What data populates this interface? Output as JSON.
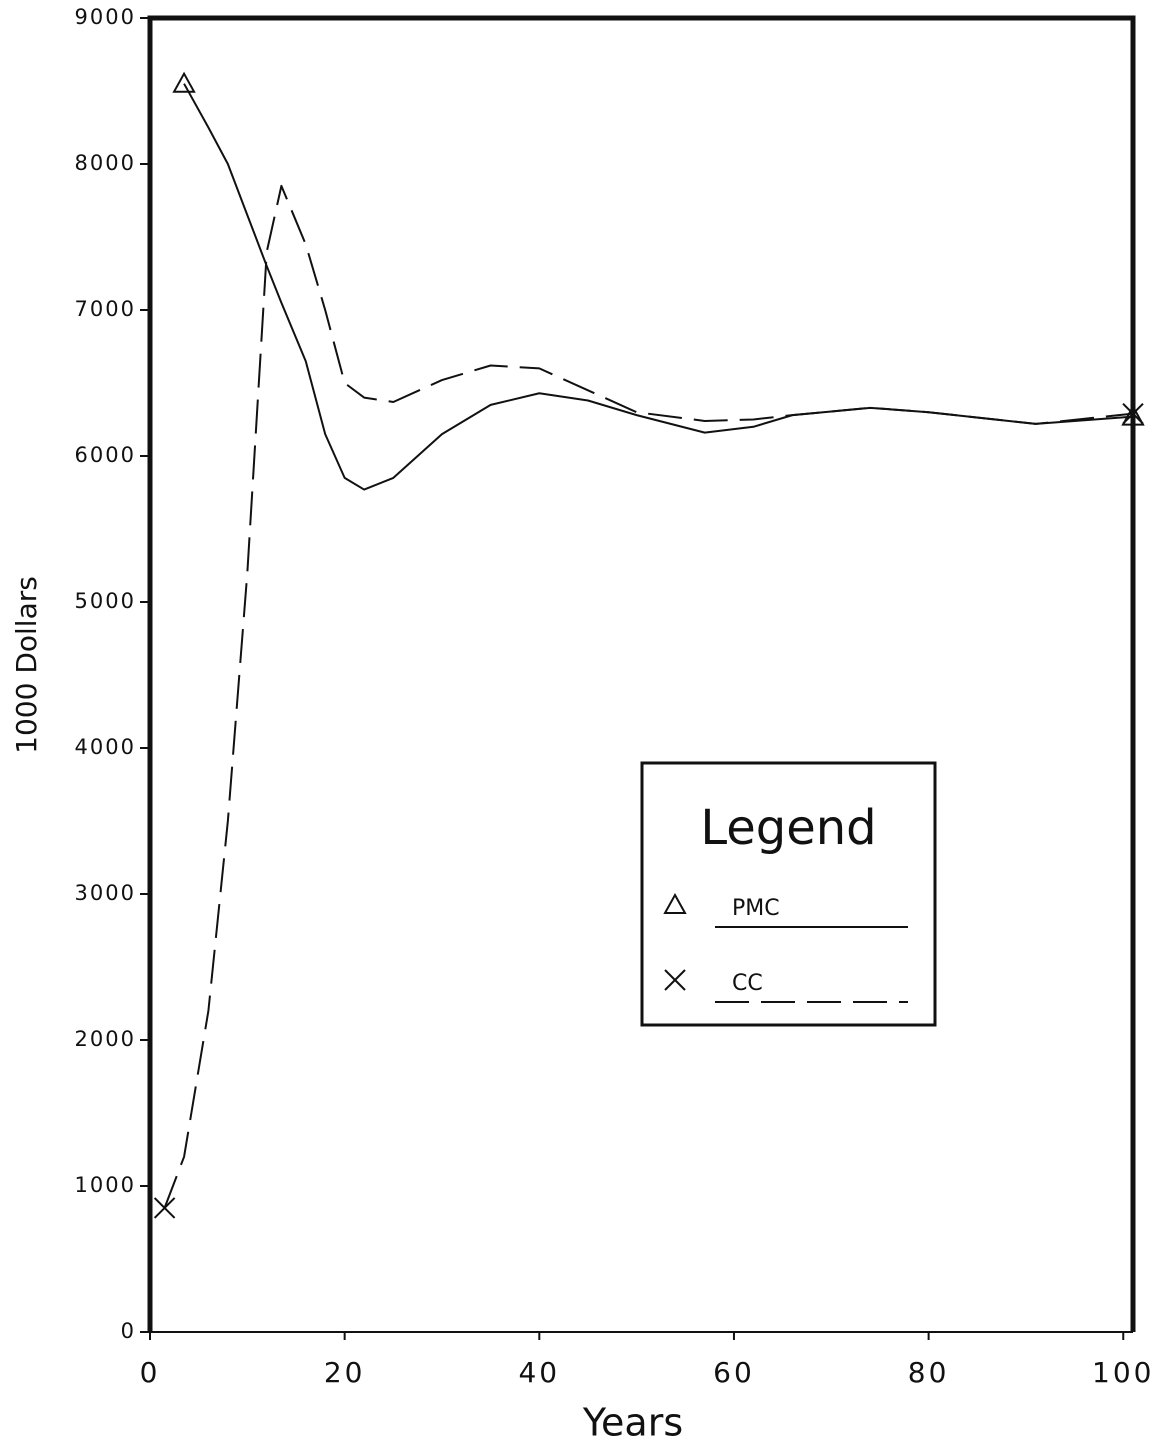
{
  "chart_data": {
    "type": "line",
    "xlabel": "Years",
    "ylabel": "1000 Dollars",
    "legend_title": "Legend",
    "x": [
      1.5,
      3.5,
      6,
      8,
      10,
      12,
      13.5,
      16,
      18,
      20,
      22,
      25,
      30,
      35,
      40,
      45,
      50,
      57,
      62,
      66,
      74,
      80,
      91,
      101
    ],
    "series": [
      {
        "name": "PMC",
        "color": "#111111",
        "line_style": "solid",
        "marker": "triangle",
        "values": [
          null,
          8550,
          8250,
          8000,
          7650,
          7300,
          7050,
          6650,
          6150,
          5850,
          5770,
          5850,
          6150,
          6350,
          6430,
          6380,
          6280,
          6160,
          6200,
          6280,
          6330,
          6300,
          6220,
          6270
        ]
      },
      {
        "name": "CC",
        "color": "#111111",
        "line_style": "dashed",
        "marker": "x",
        "values": [
          850,
          1200,
          2200,
          3500,
          5200,
          7400,
          7850,
          7450,
          7000,
          6500,
          6400,
          6370,
          6520,
          6620,
          6600,
          6450,
          6300,
          6240,
          6250,
          6280,
          6330,
          6300,
          6220,
          6290
        ]
      }
    ],
    "xlim": [
      0,
      101
    ],
    "xticks": [
      0,
      20,
      40,
      60,
      80,
      100
    ],
    "ylim": [
      0,
      9000
    ],
    "yticks": [
      0,
      1000,
      2000,
      3000,
      4000,
      5000,
      6000,
      7000,
      8000,
      9000
    ],
    "grid": false,
    "legend_position": "lower right"
  }
}
